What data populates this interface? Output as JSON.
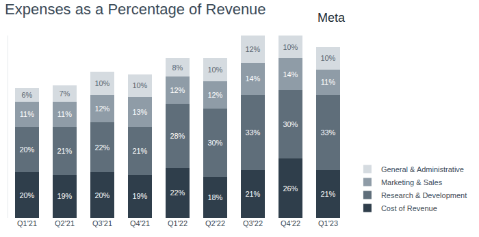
{
  "chart_data": {
    "type": "bar",
    "title": "Expenses as a Percentage of Revenue",
    "annotations": [
      "Meta"
    ],
    "categories": [
      "Q1'21",
      "Q2'21",
      "Q3'21",
      "Q4'21",
      "Q1'22",
      "Q2'22",
      "Q3'22",
      "Q4'22",
      "Q1'23"
    ],
    "stacked": true,
    "data_labels": true,
    "tick_labels": "x",
    "legend": "right",
    "grid": false,
    "ylim": [
      0,
      80
    ],
    "series": [
      {
        "name": "Cost of Revenue",
        "color": "#2f3e4b",
        "values": [
          20,
          19,
          20,
          19,
          22,
          18,
          21,
          26,
          21
        ],
        "value_labels": [
          "20%",
          "19%",
          "20%",
          "19%",
          "22%",
          "18%",
          "21%",
          "26%",
          "21%"
        ]
      },
      {
        "name": "Research & Development",
        "color": "#5f6e7a",
        "values": [
          20,
          21,
          22,
          21,
          28,
          30,
          33,
          30,
          33
        ],
        "value_labels": [
          "20%",
          "21%",
          "22%",
          "21%",
          "28%",
          "30%",
          "33%",
          "30%",
          "33%"
        ]
      },
      {
        "name": "Marketing & Sales",
        "color": "#8f9ca7",
        "values": [
          11,
          11,
          12,
          13,
          12,
          12,
          14,
          14,
          11
        ],
        "value_labels": [
          "11%",
          "11%",
          "12%",
          "13%",
          "12%",
          "12%",
          "14%",
          "14%",
          "11%"
        ]
      },
      {
        "name": "General & Administrative",
        "color": "#d5dbe0",
        "values": [
          6,
          7,
          10,
          10,
          8,
          10,
          12,
          10,
          10
        ],
        "value_labels": [
          "6%",
          "7%",
          "10%",
          "10%",
          "8%",
          "10%",
          "12%",
          "10%",
          "10%"
        ]
      }
    ]
  }
}
